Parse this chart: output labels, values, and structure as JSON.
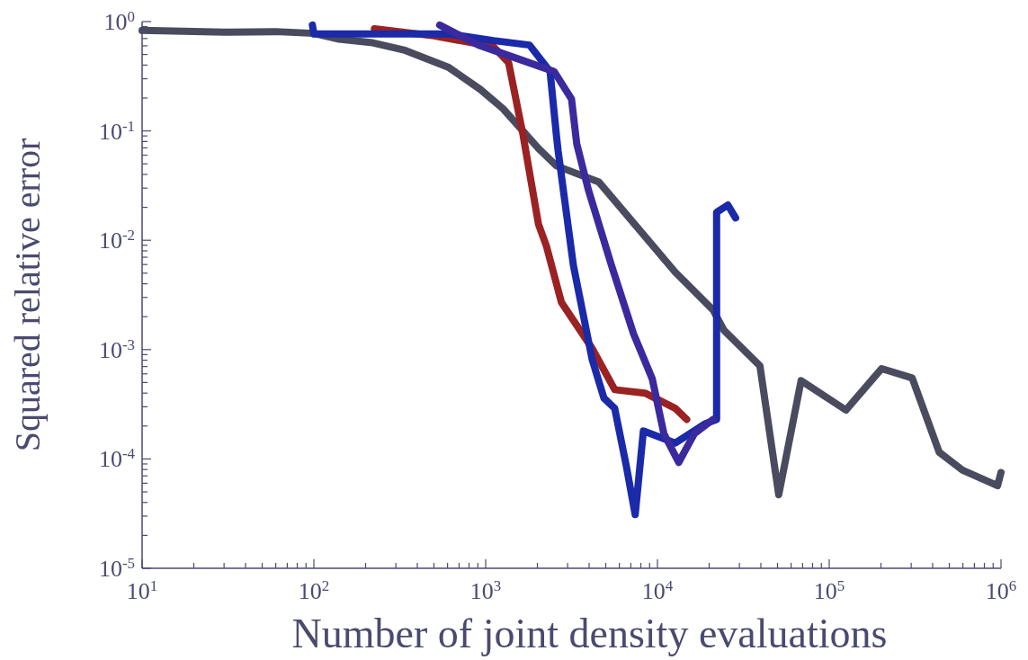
{
  "chart_data": {
    "type": "line",
    "xlabel": "Number of joint density evaluations",
    "ylabel": "Squared relative error",
    "log": "xy",
    "grid": false,
    "marker": "none",
    "line_style": "solid",
    "xlim": [
      10,
      1000000
    ],
    "ylim": [
      1e-05,
      1
    ],
    "xticks": [
      {
        "value": 10,
        "label": "10$^{1}$"
      },
      {
        "value": 20,
        "label": null
      },
      {
        "value": 30,
        "label": null
      },
      {
        "value": 40,
        "label": null
      },
      {
        "value": 50,
        "label": null
      },
      {
        "value": 60,
        "label": null
      },
      {
        "value": 70,
        "label": null
      },
      {
        "value": 80,
        "label": null
      },
      {
        "value": 90,
        "label": null
      },
      {
        "value": 100,
        "label": "10$^{2}$"
      },
      {
        "value": 200,
        "label": null
      },
      {
        "value": 300,
        "label": null
      },
      {
        "value": 400,
        "label": null
      },
      {
        "value": 500,
        "label": null
      },
      {
        "value": 600,
        "label": null
      },
      {
        "value": 700,
        "label": null
      },
      {
        "value": 800,
        "label": null
      },
      {
        "value": 900,
        "label": null
      },
      {
        "value": 1000,
        "label": "10$^{3}$"
      },
      {
        "value": 2000,
        "label": null
      },
      {
        "value": 3000,
        "label": null
      },
      {
        "value": 4000,
        "label": null
      },
      {
        "value": 5000,
        "label": null
      },
      {
        "value": 6000,
        "label": null
      },
      {
        "value": 7000,
        "label": null
      },
      {
        "value": 8000,
        "label": null
      },
      {
        "value": 9000,
        "label": null
      },
      {
        "value": 10000,
        "label": "10$^{4}$"
      },
      {
        "value": 20000,
        "label": null
      },
      {
        "value": 30000,
        "label": null
      },
      {
        "value": 40000,
        "label": null
      },
      {
        "value": 50000,
        "label": null
      },
      {
        "value": 60000,
        "label": null
      },
      {
        "value": 70000,
        "label": null
      },
      {
        "value": 80000,
        "label": null
      },
      {
        "value": 90000,
        "label": null
      },
      {
        "value": 100000,
        "label": "10$^{5}$"
      },
      {
        "value": 200000,
        "label": null
      },
      {
        "value": 300000,
        "label": null
      },
      {
        "value": 400000,
        "label": null
      },
      {
        "value": 500000,
        "label": null
      },
      {
        "value": 600000,
        "label": null
      },
      {
        "value": 700000,
        "label": null
      },
      {
        "value": 800000,
        "label": null
      },
      {
        "value": 900000,
        "label": null
      },
      {
        "value": 1000000,
        "label": "10$^{6}$"
      }
    ],
    "yticks": [
      {
        "value": 1e-05,
        "label": "10$^{-5}$"
      },
      {
        "value": 2e-05,
        "label": null
      },
      {
        "value": 3e-05,
        "label": null
      },
      {
        "value": 4e-05,
        "label": null
      },
      {
        "value": 5e-05,
        "label": null
      },
      {
        "value": 6e-05,
        "label": null
      },
      {
        "value": 7e-05,
        "label": null
      },
      {
        "value": 8e-05,
        "label": null
      },
      {
        "value": 9e-05,
        "label": null
      },
      {
        "value": 0.0001,
        "label": "10$^{-4}$"
      },
      {
        "value": 0.0002,
        "label": null
      },
      {
        "value": 0.0003,
        "label": null
      },
      {
        "value": 0.0004,
        "label": null
      },
      {
        "value": 0.0005,
        "label": null
      },
      {
        "value": 0.0006,
        "label": null
      },
      {
        "value": 0.0007,
        "label": null
      },
      {
        "value": 0.0008,
        "label": null
      },
      {
        "value": 0.0009,
        "label": null
      },
      {
        "value": 0.001,
        "label": "10$^{-3}$"
      },
      {
        "value": 0.002,
        "label": null
      },
      {
        "value": 0.003,
        "label": null
      },
      {
        "value": 0.004,
        "label": null
      },
      {
        "value": 0.005,
        "label": null
      },
      {
        "value": 0.006,
        "label": null
      },
      {
        "value": 0.007,
        "label": null
      },
      {
        "value": 0.008,
        "label": null
      },
      {
        "value": 0.009,
        "label": null
      },
      {
        "value": 0.01,
        "label": "10$^{-2}$"
      },
      {
        "value": 0.02,
        "label": null
      },
      {
        "value": 0.03,
        "label": null
      },
      {
        "value": 0.04,
        "label": null
      },
      {
        "value": 0.05,
        "label": null
      },
      {
        "value": 0.06,
        "label": null
      },
      {
        "value": 0.07,
        "label": null
      },
      {
        "value": 0.08,
        "label": null
      },
      {
        "value": 0.09,
        "label": null
      },
      {
        "value": 0.1,
        "label": "10$^{-1}$"
      },
      {
        "value": 0.2,
        "label": null
      },
      {
        "value": 0.3,
        "label": null
      },
      {
        "value": 0.4,
        "label": null
      },
      {
        "value": 0.5,
        "label": null
      },
      {
        "value": 0.6,
        "label": null
      },
      {
        "value": 0.7,
        "label": null
      },
      {
        "value": 0.8,
        "label": null
      },
      {
        "value": 0.9,
        "label": null
      },
      {
        "value": 1,
        "label": "10$^{0}$"
      }
    ],
    "series": [
      {
        "color": "#4a4b5e",
        "x": [
          10,
          30,
          60,
          100,
          140,
          220,
          334,
          610,
          930,
          1260,
          2030,
          2580,
          4570,
          12700,
          21100,
          24400,
          39500,
          50800,
          68600,
          125000,
          202000,
          304000,
          437000,
          597000,
          955000,
          1000000
        ],
        "values": [
          0.83,
          0.8,
          0.81,
          0.78,
          0.69,
          0.64,
          0.55,
          0.38,
          0.24,
          0.16,
          0.069,
          0.048,
          0.034,
          0.0051,
          0.0023,
          0.0015,
          0.00071,
          4.7e-05,
          0.00052,
          0.00028,
          0.00067,
          0.00055,
          0.000115,
          7.9e-05,
          5.7e-05,
          7.5e-05
        ]
      },
      {
        "color": "#9b2222",
        "x": [
          225,
          500,
          1110,
          1360,
          1650,
          2030,
          2260,
          2760,
          4160,
          5640,
          8470,
          12700,
          14800
        ],
        "values": [
          0.86,
          0.74,
          0.59,
          0.42,
          0.092,
          0.014,
          0.0088,
          0.0027,
          0.00103,
          0.00043,
          0.0004,
          0.00029,
          0.00023
        ]
      },
      {
        "color": "#1a2aa8",
        "x": [
          98,
          100,
          610,
          1110,
          1800,
          2370,
          2580,
          2640,
          3240,
          4170,
          4880,
          5640,
          6580,
          7420,
          8280,
          12700,
          19000,
          22100,
          22100,
          25700,
          28500
        ],
        "values": [
          0.93,
          0.77,
          0.77,
          0.67,
          0.61,
          0.35,
          0.092,
          0.066,
          0.0059,
          0.00081,
          0.00036,
          0.00029,
          8.7e-05,
          3.1e-05,
          0.00018,
          0.00014,
          0.00021,
          0.00023,
          0.018,
          0.021,
          0.016
        ]
      },
      {
        "color": "#3a2a9e",
        "x": [
          540,
          910,
          1650,
          2500,
          3160,
          3390,
          3960,
          5400,
          7250,
          9330,
          10900,
          13300,
          16400,
          21100
        ],
        "values": [
          0.93,
          0.61,
          0.44,
          0.35,
          0.196,
          0.076,
          0.029,
          0.0059,
          0.0014,
          0.00054,
          0.00017,
          9.3e-05,
          0.00017,
          0.00023
        ]
      }
    ]
  }
}
